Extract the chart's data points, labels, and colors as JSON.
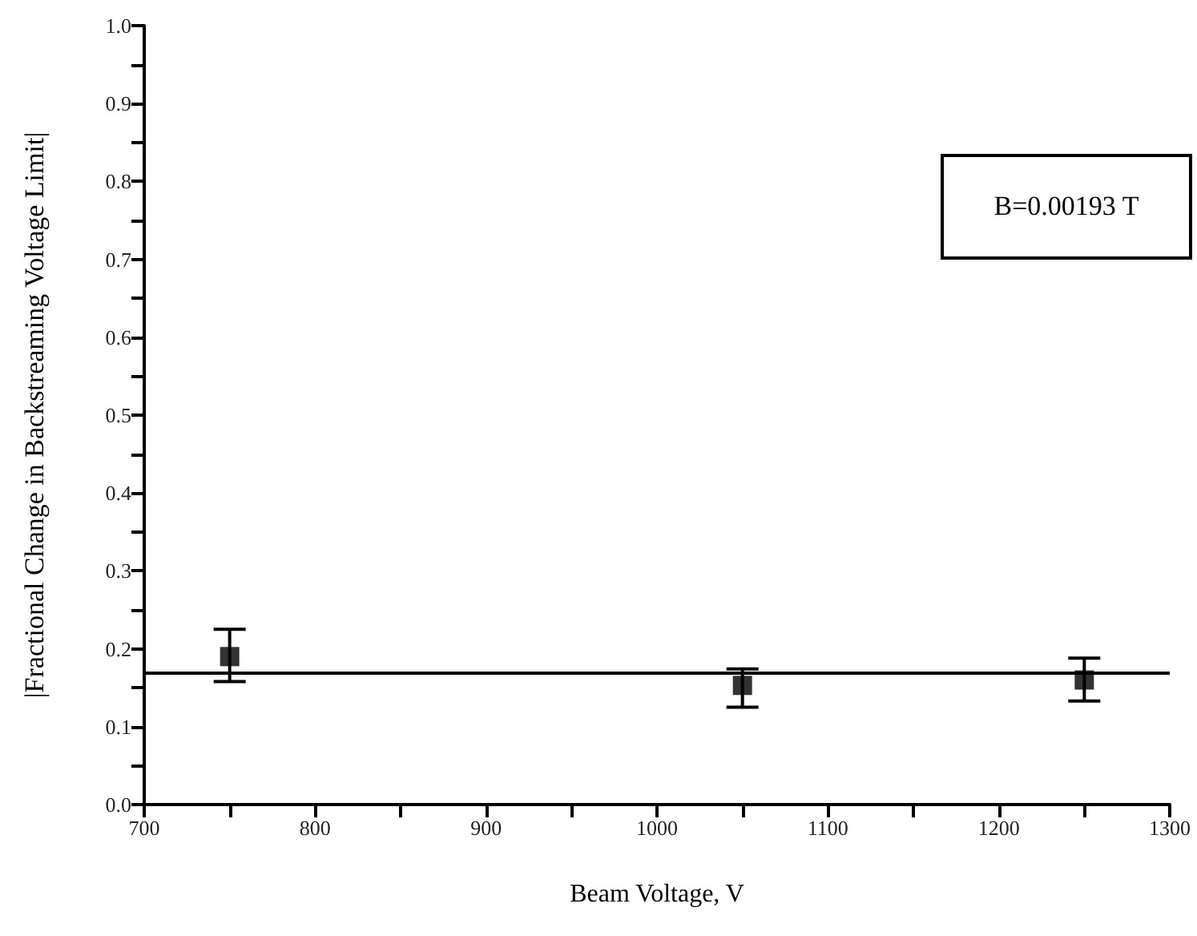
{
  "chart_data": {
    "type": "scatter",
    "xlabel": "Beam Voltage, V",
    "ylabel": "|Fractional Change in Backstreaming Voltage Limit|",
    "x": [
      750,
      1050,
      1250
    ],
    "series": [
      {
        "color": "#000000",
        "values": [
          0.19,
          0.153,
          0.16
        ],
        "errors": [
          [
            0.158,
            0.225
          ],
          [
            0.125,
            0.174
          ],
          [
            0.133,
            0.188
          ]
        ]
      }
    ],
    "marker": "square",
    "xlim": [
      700,
      1300
    ],
    "xticks": [
      700,
      {
        "value": 750,
        "label": null
      },
      800,
      {
        "value": 850,
        "label": null
      },
      900,
      {
        "value": 950,
        "label": null
      },
      1000,
      {
        "value": 1050,
        "label": null
      },
      1100,
      {
        "value": 1150,
        "label": null
      },
      1200,
      {
        "value": 1250,
        "label": null
      },
      1300
    ],
    "ylim": [
      0,
      1
    ],
    "yticks": [
      {
        "value": 0,
        "label": "0.0"
      },
      {
        "value": 0.05,
        "label": null
      },
      0.1,
      {
        "value": 0.15,
        "label": null
      },
      0.2,
      {
        "value": 0.25,
        "label": null
      },
      0.3,
      {
        "value": 0.35,
        "label": null
      },
      0.4,
      {
        "value": 0.45,
        "label": null
      },
      0.5,
      {
        "value": 0.55,
        "label": null
      },
      0.6,
      {
        "value": 0.65,
        "label": null
      },
      0.7,
      {
        "value": 0.75,
        "label": null
      },
      0.8,
      {
        "value": 0.85,
        "label": null
      },
      0.9,
      {
        "value": 0.95,
        "label": null
      },
      {
        "value": 1,
        "label": "1.0"
      }
    ],
    "ref_lines": [
      {
        "axis": "y",
        "value": 0.167,
        "color": "#000000"
      }
    ],
    "annotations": [
      "B=0.00193 T"
    ],
    "grid": false
  }
}
